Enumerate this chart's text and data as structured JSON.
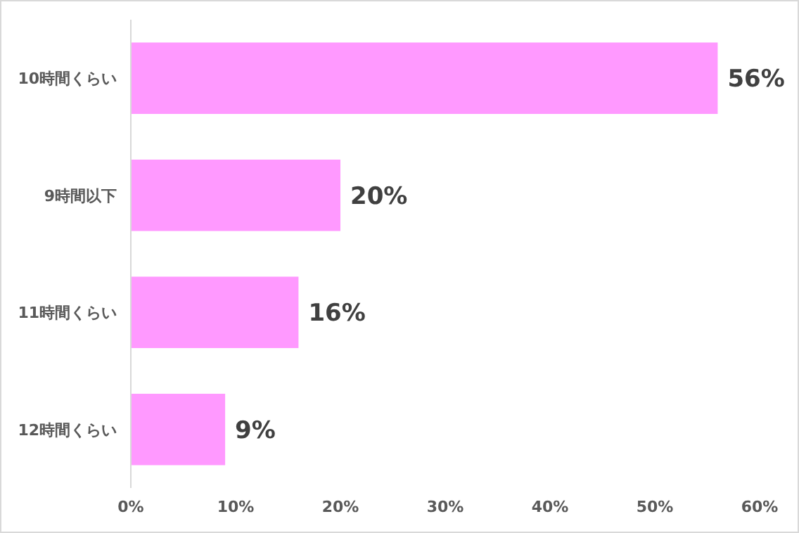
{
  "chart_data": {
    "type": "bar",
    "orientation": "horizontal",
    "categories": [
      "10時間くらい",
      "9時間以下",
      "11時間くらい",
      "12時間くらい"
    ],
    "values": [
      56,
      20,
      16,
      9
    ],
    "value_labels": [
      "56%",
      "20%",
      "16%",
      "9%"
    ],
    "color": "#ff99ff",
    "xlim": [
      0,
      60
    ],
    "xticks": [
      {
        "value": 0,
        "label": "0%"
      },
      {
        "value": 10,
        "label": "10%"
      },
      {
        "value": 20,
        "label": "20%"
      },
      {
        "value": 30,
        "label": "30%"
      },
      {
        "value": 40,
        "label": "40%"
      },
      {
        "value": 50,
        "label": "50%"
      },
      {
        "value": 60,
        "label": "60%"
      }
    ],
    "grid": false
  }
}
